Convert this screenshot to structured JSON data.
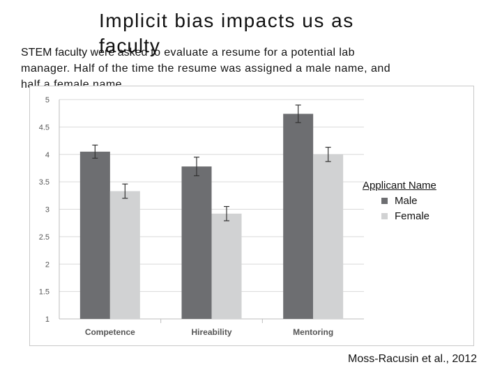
{
  "slide": {
    "title_line1": "Implicit bias impacts us as",
    "title_line2": "faculty",
    "body_start": "STEM faculty",
    "body_mid": "were asked",
    "body_end": " to evaluate a resume for a potential lab",
    "body_line2": "manager. Half  of the time the resume was assigned a male name, and",
    "body_line3": "half a female name.",
    "citation": "Moss-Racusin et al., 2012"
  },
  "colors": {
    "male": "#6d6e71",
    "female": "#d1d2d3",
    "grid": "#d9d9d9",
    "axis_text": "#555555"
  },
  "chart_data": {
    "type": "bar",
    "categories": [
      "Competence",
      "Hireability",
      "Mentoring"
    ],
    "ylim": [
      1,
      5
    ],
    "yticks": [
      "1",
      "1.5",
      "2",
      "2.5",
      "3",
      "3.5",
      "4",
      "4.5",
      "5"
    ],
    "legend_title": "Applicant Name",
    "legend_position": "right",
    "grid": true,
    "series": [
      {
        "name": "Male",
        "values": [
          4.05,
          3.78,
          4.74
        ],
        "err": [
          0.12,
          0.17,
          0.16
        ]
      },
      {
        "name": "Female",
        "values": [
          3.33,
          2.92,
          4.0
        ],
        "err": [
          0.13,
          0.13,
          0.13
        ]
      }
    ]
  }
}
